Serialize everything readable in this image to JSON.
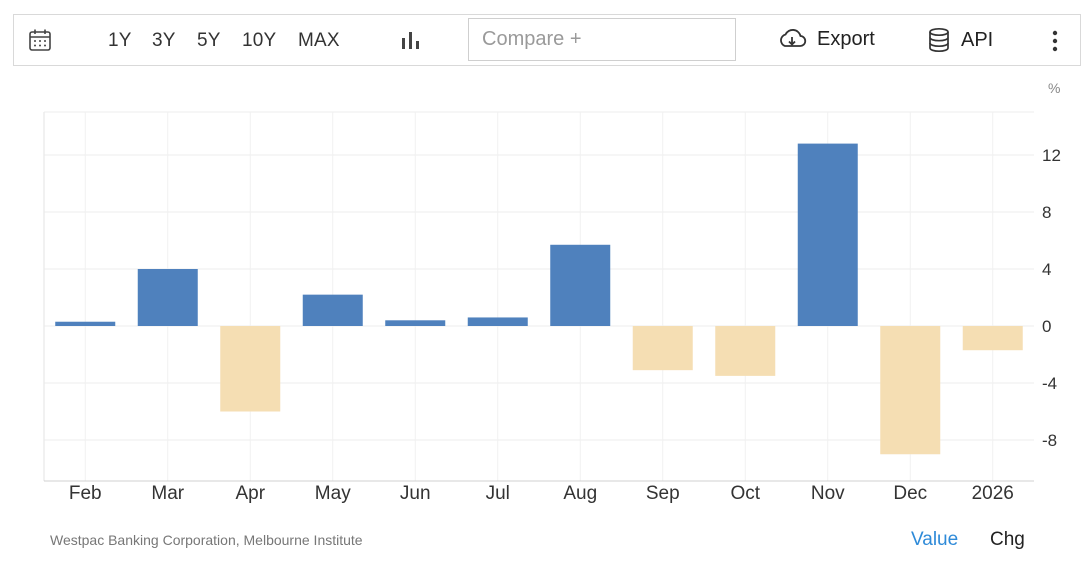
{
  "toolbar": {
    "calendar_icon": "calendar-icon",
    "ranges": [
      "1Y",
      "3Y",
      "5Y",
      "10Y",
      "MAX"
    ],
    "chart_type_icon": "bar-chart-icon",
    "compare_placeholder": "Compare +",
    "export_label": "Export",
    "export_icon": "cloud-download-icon",
    "api_label": "API",
    "api_icon": "database-icon",
    "more_icon": "vertical-dots-icon"
  },
  "unit_label": "%",
  "source": "Westpac Banking Corporation, Melbourne Institute",
  "view_modes": {
    "value": "Value",
    "chg": "Chg"
  },
  "colors": {
    "positive": "#4f81bd",
    "negative": "#f5deb3",
    "grid": "#ececec",
    "accent": "#2e8ad8"
  },
  "chart_data": {
    "type": "bar",
    "categories": [
      "Feb",
      "Mar",
      "Apr",
      "May",
      "Jun",
      "Jul",
      "Aug",
      "Sep",
      "Oct",
      "Nov",
      "Dec",
      "2026"
    ],
    "values": [
      0.3,
      4.0,
      -6.0,
      2.2,
      0.4,
      0.6,
      5.7,
      -3.1,
      -3.5,
      12.8,
      -9.0,
      -1.7
    ],
    "yticks": [
      12,
      8,
      4,
      0,
      -4,
      -8
    ],
    "ylim": [
      -11,
      15
    ],
    "y_axis_position": "right",
    "grid": true,
    "legend": "none"
  }
}
